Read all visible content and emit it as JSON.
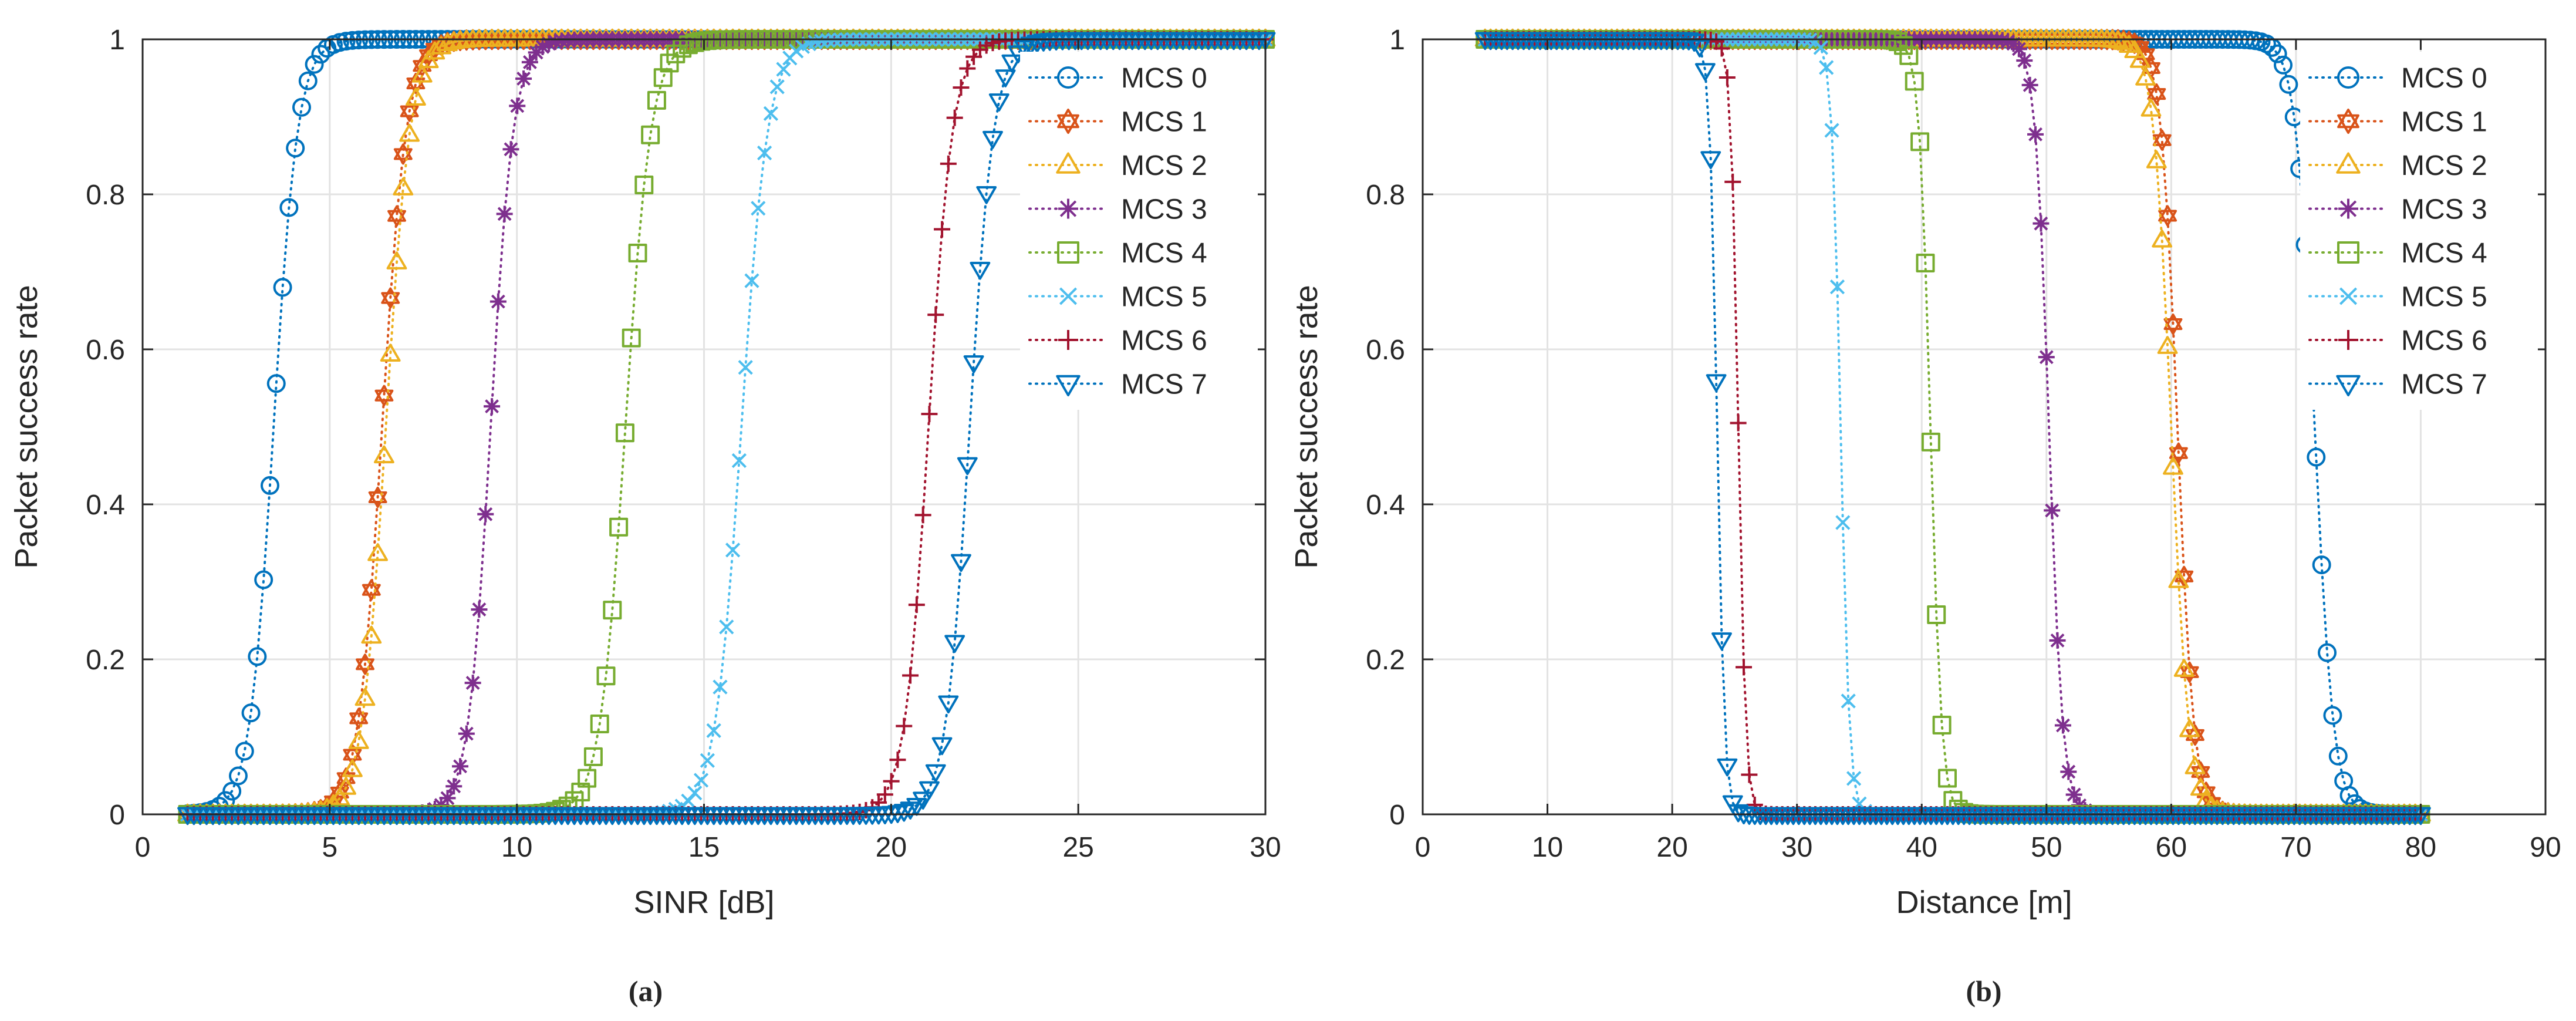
{
  "chart_data": [
    {
      "id": "a",
      "type": "line",
      "caption": "(a)",
      "xlabel": "SINR [dB]",
      "ylabel": "Packet success rate",
      "xlim": [
        0,
        30
      ],
      "ylim": [
        0,
        1
      ],
      "xticks": [
        "0",
        "5",
        "10",
        "15",
        "20",
        "25",
        "30"
      ],
      "yticks": [
        "0",
        "0.2",
        "0.4",
        "0.6",
        "0.8",
        "1"
      ],
      "xtick_values": [
        0,
        5,
        10,
        15,
        20,
        25,
        30
      ],
      "ytick_values": [
        0,
        0.2,
        0.4,
        0.6,
        0.8,
        1
      ],
      "grid": true,
      "legend_position": "top-right",
      "x_range": [
        1.2,
        30
      ],
      "increasing": true,
      "series": [
        {
          "name": "MCS 0",
          "midpoint": 3.5,
          "width": 0.32,
          "color": "#0072BD",
          "marker": "circle"
        },
        {
          "name": "MCS 1",
          "midpoint": 6.4,
          "width": 0.32,
          "color": "#D95319",
          "marker": "hexagram"
        },
        {
          "name": "MCS 2",
          "midpoint": 6.5,
          "width": 0.32,
          "color": "#EDB120",
          "marker": "triangle-up"
        },
        {
          "name": "MCS 3",
          "midpoint": 9.3,
          "width": 0.3,
          "color": "#7E2F8E",
          "marker": "asterisk"
        },
        {
          "name": "MCS 4",
          "midpoint": 12.9,
          "width": 0.34,
          "color": "#77AC30",
          "marker": "square"
        },
        {
          "name": "MCS 5",
          "midpoint": 16.0,
          "width": 0.35,
          "color": "#4DBEEE",
          "marker": "x"
        },
        {
          "name": "MCS 6",
          "midpoint": 21.0,
          "width": 0.32,
          "color": "#A2142F",
          "marker": "plus"
        },
        {
          "name": "MCS 7",
          "midpoint": 22.1,
          "width": 0.32,
          "color": "#0072BD",
          "marker": "triangle-down"
        }
      ]
    },
    {
      "id": "b",
      "type": "line",
      "caption": "(b)",
      "xlabel": "Distance [m]",
      "ylabel": "Packet success rate",
      "xlim": [
        0,
        90
      ],
      "ylim": [
        0,
        1
      ],
      "xticks": [
        "0",
        "10",
        "20",
        "30",
        "40",
        "50",
        "60",
        "70",
        "80",
        "90"
      ],
      "yticks": [
        "0",
        "0.2",
        "0.4",
        "0.6",
        "0.8",
        "1"
      ],
      "xtick_values": [
        0,
        10,
        20,
        30,
        40,
        50,
        60,
        70,
        80,
        90
      ],
      "ytick_values": [
        0,
        0.2,
        0.4,
        0.6,
        0.8,
        1
      ],
      "grid": true,
      "legend_position": "top-right",
      "x_range": [
        5,
        80
      ],
      "increasing": false,
      "series": [
        {
          "name": "MCS 0",
          "midpoint": 71.5,
          "width": 0.75,
          "color": "#0072BD",
          "marker": "circle"
        },
        {
          "name": "MCS 1",
          "midpoint": 60.5,
          "width": 0.65,
          "color": "#D95319",
          "marker": "hexagram"
        },
        {
          "name": "MCS 2",
          "midpoint": 60.0,
          "width": 0.7,
          "color": "#EDB120",
          "marker": "triangle-up"
        },
        {
          "name": "MCS 3",
          "midpoint": 50.2,
          "width": 0.55,
          "color": "#7E2F8E",
          "marker": "asterisk"
        },
        {
          "name": "MCS 4",
          "midpoint": 40.7,
          "width": 0.45,
          "color": "#77AC30",
          "marker": "square"
        },
        {
          "name": "MCS 5",
          "midpoint": 33.5,
          "width": 0.35,
          "color": "#4DBEEE",
          "marker": "x"
        },
        {
          "name": "MCS 6",
          "midpoint": 25.3,
          "width": 0.3,
          "color": "#A2142F",
          "marker": "plus"
        },
        {
          "name": "MCS 7",
          "midpoint": 23.6,
          "width": 0.3,
          "color": "#0072BD",
          "marker": "triangle-down"
        }
      ]
    }
  ]
}
